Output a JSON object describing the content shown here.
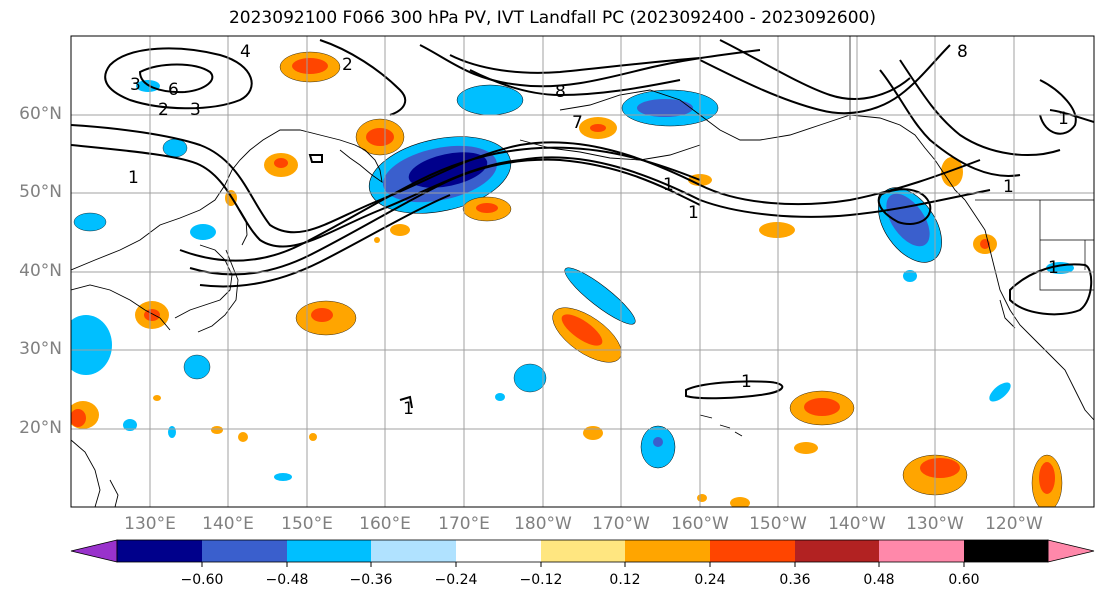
{
  "title": "2023092100 F066 300 hPa PV, IVT Landfall PC (2023092400 - 2023092600)",
  "map": {
    "lat_labels": [
      "60°N",
      "50°N",
      "40°N",
      "30°N",
      "20°N"
    ],
    "lon_labels": [
      "130°E",
      "140°E",
      "150°E",
      "160°E",
      "170°E",
      "180°W",
      "170°W",
      "160°W",
      "150°W",
      "140°W",
      "130°W",
      "120°W"
    ],
    "contour_labels": [
      "4",
      "2",
      "3",
      "6",
      "2",
      "3",
      "1",
      "8",
      "7",
      "1",
      "1",
      "1",
      "8",
      "1",
      "1",
      "1",
      "1"
    ],
    "land_color": "#ffffff",
    "grid_color": "#a0a0a0"
  },
  "colorbar": {
    "colors": [
      "#9932CC",
      "#00008B",
      "#3A5FCD",
      "#00BFFF",
      "#B0E2FF",
      "#FFFFFF",
      "#FFE680",
      "#FFA500",
      "#FF4500",
      "#B22222",
      "#FF88AA"
    ],
    "tick_labels": [
      "−0.60",
      "−0.48",
      "−0.36",
      "−0.24",
      "−0.12",
      "0.12",
      "0.24",
      "0.36",
      "0.48",
      "0.60"
    ]
  }
}
